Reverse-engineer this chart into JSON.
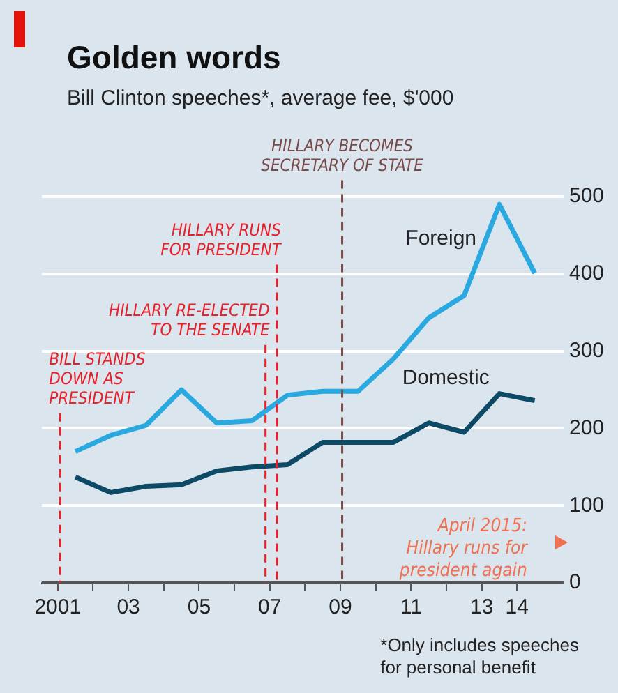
{
  "chart_data": {
    "type": "line",
    "title": "Golden words",
    "subtitle": "Bill Clinton speeches*, average fee, $'000",
    "x": [
      2001.5,
      2002.5,
      2003.5,
      2004.5,
      2005.5,
      2006.5,
      2007.5,
      2008.5,
      2009.5,
      2010.5,
      2011.5,
      2012.5,
      2013.5,
      2014.5
    ],
    "series": [
      {
        "name": "Foreign",
        "color": "#2aa8e0",
        "values": [
          170,
          191,
          204,
          250,
          207,
          210,
          243,
          248,
          248,
          290,
          343,
          372,
          490,
          401
        ]
      },
      {
        "name": "Domestic",
        "color": "#0d4a66",
        "values": [
          137,
          117,
          125,
          127,
          145,
          150,
          153,
          182,
          182,
          182,
          207,
          195,
          245,
          236
        ]
      }
    ],
    "xlim": [
      2000.55,
      2015
    ],
    "xticks": [
      {
        "value": 2001,
        "label": "2001"
      },
      {
        "value": 2002,
        "label": null
      },
      {
        "value": 2003,
        "label": "03"
      },
      {
        "value": 2004,
        "label": null
      },
      {
        "value": 2005,
        "label": "05"
      },
      {
        "value": 2006,
        "label": null
      },
      {
        "value": 2007,
        "label": "07"
      },
      {
        "value": 2008,
        "label": null
      },
      {
        "value": 2009,
        "label": "09"
      },
      {
        "value": 2010,
        "label": null
      },
      {
        "value": 2011,
        "label": "11"
      },
      {
        "value": 2012,
        "label": null
      },
      {
        "value": 2013,
        "label": "13"
      },
      {
        "value": 2014,
        "label": "14"
      }
    ],
    "ylim": [
      0,
      520
    ],
    "yticks": [
      0,
      100,
      200,
      300,
      400,
      500
    ],
    "grid": "y",
    "legend": false,
    "line_style": "solid",
    "ref_lines": [
      {
        "axis": "x",
        "value": 2001.07,
        "label": "BILL STANDS\nDOWN AS\nPRESIDENT",
        "color": "#e8202a",
        "line_style": "dashed"
      },
      {
        "axis": "x",
        "value": 2006.88,
        "label": "HILLARY RE-ELECTED\nTO THE SENATE",
        "color": "#e8202a",
        "line_style": "dashed"
      },
      {
        "axis": "x",
        "value": 2007.2,
        "label": "HILLARY RUNS\nFOR PRESIDENT",
        "color": "#e8202a",
        "line_style": "dashed"
      },
      {
        "axis": "x",
        "value": 2009.05,
        "label": "HILLARY BECOMES\nSECRETARY OF STATE",
        "color": "#7a4a4a",
        "line_style": "dashed"
      }
    ],
    "annotations": [
      "April 2015:\nHillary runs for\npresident again",
      "*Only includes speeches\nfor personal benefit"
    ]
  }
}
